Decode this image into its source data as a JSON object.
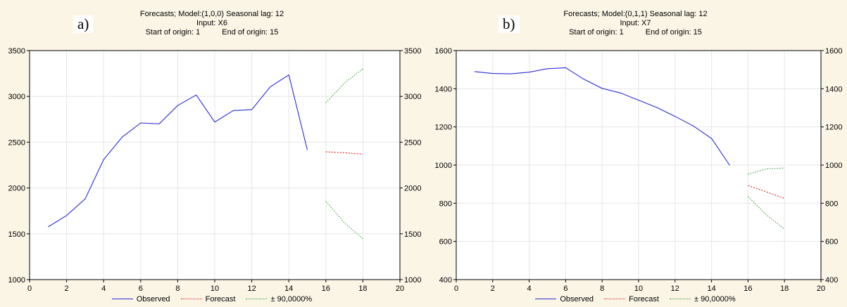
{
  "chart_data": [
    {
      "type": "line",
      "panel_label": "a)",
      "title_lines": [
        "Forecasts; Model:(1,0,0) Seasonal lag: 12",
        "Input: X6"
      ],
      "origin_start": "Start of origin: 1",
      "origin_end": "End of origin: 15",
      "xlim": [
        0,
        20
      ],
      "ylim": [
        1000,
        3500
      ],
      "x_ticks": [
        0,
        2,
        4,
        6,
        8,
        10,
        12,
        14,
        16,
        18,
        20
      ],
      "y_ticks": [
        1000,
        1500,
        2000,
        2500,
        3000,
        3500
      ],
      "grid": true,
      "series": [
        {
          "name": "Observed",
          "x": [
            1,
            2,
            3,
            4,
            5,
            6,
            7,
            8,
            9,
            10,
            11,
            12,
            13,
            14,
            15
          ],
          "y": [
            1575,
            1700,
            1880,
            2310,
            2555,
            2710,
            2700,
            2900,
            3015,
            2720,
            2845,
            2855,
            3105,
            3235,
            2415
          ]
        },
        {
          "name": "Forecast",
          "x": [
            16,
            17,
            18
          ],
          "y": [
            2395,
            2385,
            2370
          ]
        },
        {
          "name": "± 90,0000%",
          "x": [
            16,
            17,
            18
          ],
          "y": [
            2930,
            3145,
            3300
          ]
        },
        {
          "name": "± 90,0000%",
          "x": [
            16,
            17,
            18
          ],
          "y": [
            1855,
            1620,
            1445
          ]
        }
      ],
      "legend": [
        "Observed",
        "Forecast",
        "± 90,0000%"
      ]
    },
    {
      "type": "line",
      "panel_label": "b)",
      "title_lines": [
        "Forecasts; Model:(0,1,1) Seasonal lag: 12",
        "Input: X7"
      ],
      "origin_start": "Start of origin: 1",
      "origin_end": "End of origin: 15",
      "xlim": [
        0,
        20
      ],
      "ylim": [
        400,
        1600
      ],
      "x_ticks": [
        0,
        2,
        4,
        6,
        8,
        10,
        12,
        14,
        16,
        18,
        20
      ],
      "y_ticks": [
        400,
        600,
        800,
        1000,
        1200,
        1400,
        1600
      ],
      "grid": true,
      "series": [
        {
          "name": "Observed",
          "x": [
            1,
            2,
            3,
            4,
            5,
            6,
            7,
            8,
            9,
            10,
            11,
            12,
            13,
            14,
            15
          ],
          "y": [
            1490,
            1480,
            1478,
            1487,
            1505,
            1510,
            1450,
            1402,
            1378,
            1340,
            1302,
            1255,
            1205,
            1140,
            998
          ]
        },
        {
          "name": "Forecast",
          "x": [
            16,
            17,
            18
          ],
          "y": [
            893,
            860,
            825
          ]
        },
        {
          "name": "± 90,0000%",
          "x": [
            16,
            17,
            18
          ],
          "y": [
            952,
            980,
            985
          ]
        },
        {
          "name": "± 90,0000%",
          "x": [
            16,
            17,
            18
          ],
          "y": [
            835,
            740,
            665
          ]
        }
      ],
      "legend": [
        "Observed",
        "Forecast",
        "± 90,0000%"
      ]
    }
  ],
  "colors": {
    "observed": "#2b2bd6",
    "forecast": "#e02020",
    "interval": "#3a9a3a",
    "grid": "#e6e6e6",
    "plot_bg": "#ffffff",
    "page_bg": "#fbf5e6"
  }
}
